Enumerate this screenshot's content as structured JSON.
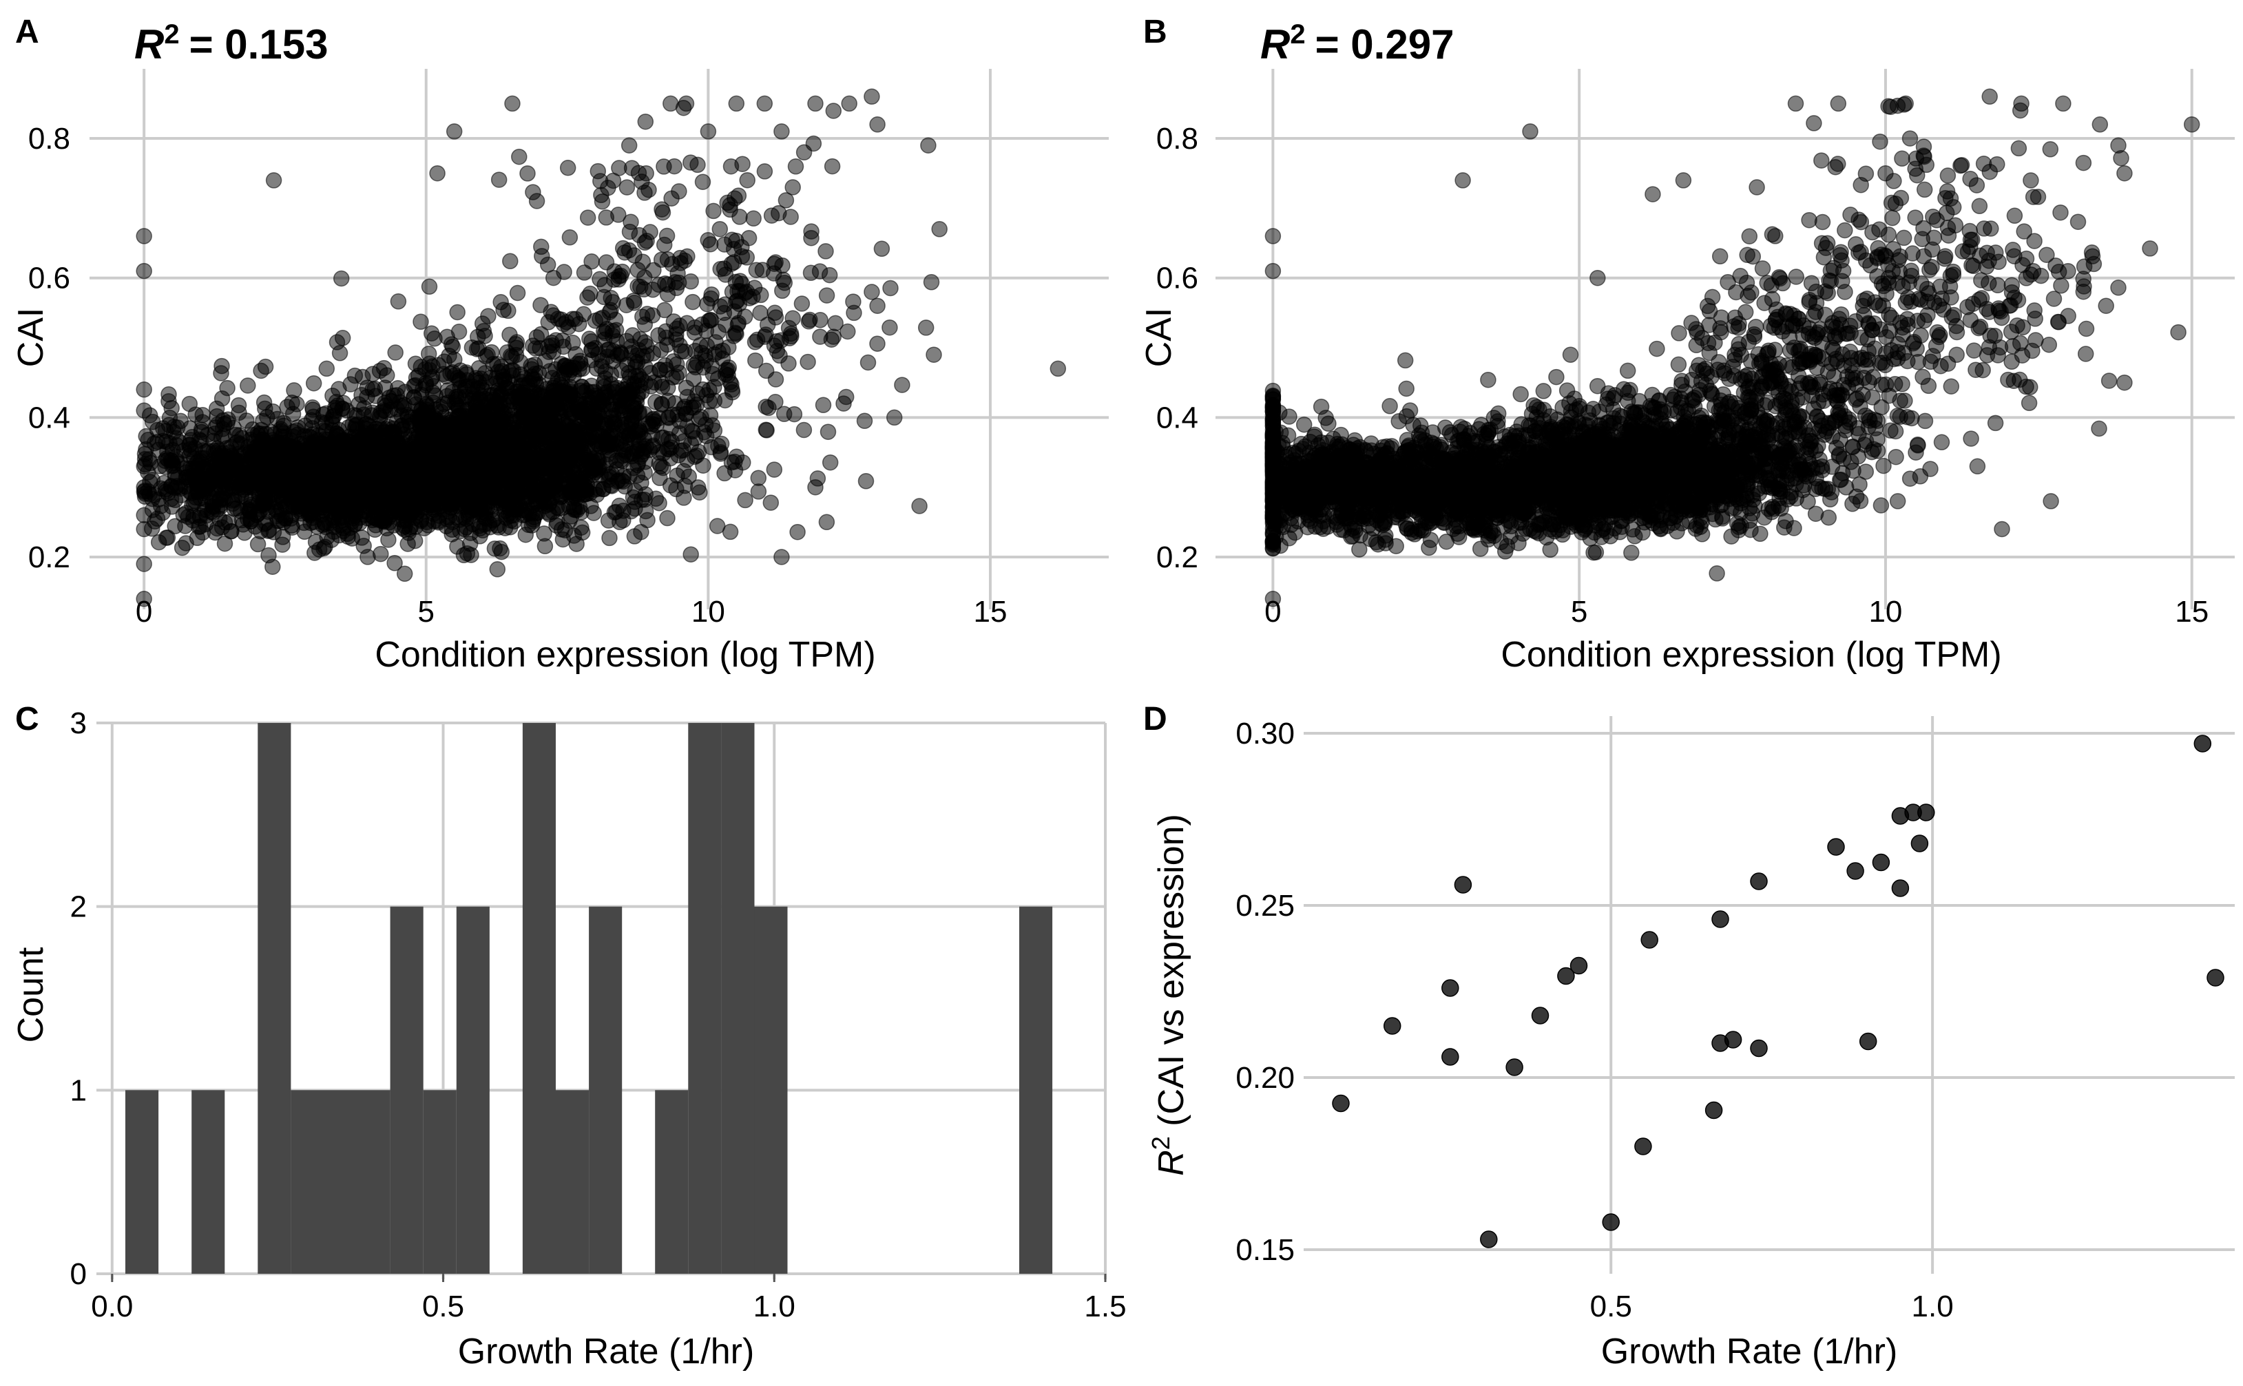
{
  "panels": {
    "A": {
      "letter": "A",
      "annotation": {
        "prefix": "R",
        "sup": "2",
        "value": "= 0.153"
      },
      "chart_data": {
        "type": "scatter",
        "xlabel": "Condition expression (log TPM)",
        "ylabel": "CAI",
        "xlim": [
          -0.6,
          17.1
        ],
        "ylim": [
          0.125,
          0.88
        ],
        "xticks": [
          0,
          5,
          10,
          15
        ],
        "yticks": [
          0.2,
          0.4,
          0.6,
          0.8
        ],
        "xtick_labels": [
          "0",
          "5",
          "10",
          "15"
        ],
        "ytick_labels": [
          "0.2",
          "0.4",
          "0.6",
          "0.8"
        ],
        "grid": true,
        "point_color": "#000000",
        "point_opacity": 0.5,
        "n_points_approx": 4000,
        "cloud": [
          {
            "x_mean": 4.0,
            "x_sd": 1.7,
            "y_mean": 0.305,
            "y_sd": 0.048,
            "n": 2200
          },
          {
            "x_mean": 6.8,
            "x_sd": 1.4,
            "y_mean": 0.36,
            "y_sd": 0.075,
            "n": 1300
          },
          {
            "x_mean": 9.5,
            "x_sd": 1.5,
            "y_mean": 0.5,
            "y_sd": 0.14,
            "n": 420
          },
          {
            "x_mean": 1.3,
            "x_sd": 0.7,
            "y_mean": 0.31,
            "y_sd": 0.05,
            "n": 150
          }
        ],
        "outliers": [
          [
            0,
            0.66
          ],
          [
            0,
            0.61
          ],
          [
            0,
            0.44
          ],
          [
            0,
            0.41
          ],
          [
            0,
            0.33
          ],
          [
            0,
            0.3
          ],
          [
            0,
            0.26
          ],
          [
            0,
            0.24
          ],
          [
            0,
            0.19
          ],
          [
            0,
            0.14
          ],
          [
            2.3,
            0.74
          ],
          [
            5.5,
            0.81
          ],
          [
            5.2,
            0.75
          ],
          [
            10.5,
            0.85
          ],
          [
            11.0,
            0.85
          ],
          [
            11.3,
            0.81
          ],
          [
            11.9,
            0.85
          ],
          [
            12.5,
            0.85
          ],
          [
            12.9,
            0.86
          ],
          [
            13.0,
            0.82
          ],
          [
            13.9,
            0.79
          ],
          [
            14.1,
            0.67
          ],
          [
            14.0,
            0.49
          ],
          [
            13.3,
            0.4
          ],
          [
            16.2,
            0.47
          ],
          [
            12.2,
            0.76
          ],
          [
            11.7,
            0.78
          ],
          [
            11.5,
            0.73
          ],
          [
            12.9,
            0.58
          ],
          [
            13.0,
            0.56
          ],
          [
            12.4,
            0.42
          ],
          [
            11.9,
            0.3
          ],
          [
            11.3,
            0.2
          ],
          [
            12.1,
            0.25
          ],
          [
            8.9,
            0.75
          ],
          [
            8.6,
            0.79
          ],
          [
            10.0,
            0.81
          ],
          [
            9.4,
            0.76
          ]
        ]
      }
    },
    "B": {
      "letter": "B",
      "annotation": {
        "prefix": "R",
        "sup": "2",
        "value": "= 0.297"
      },
      "chart_data": {
        "type": "scatter",
        "xlabel": "Condition expression (log TPM)",
        "ylabel": "CAI",
        "xlim": [
          -0.6,
          15.7
        ],
        "ylim": [
          0.125,
          0.88
        ],
        "xticks": [
          0,
          5,
          10,
          15
        ],
        "yticks": [
          0.2,
          0.4,
          0.6,
          0.8
        ],
        "xtick_labels": [
          "0",
          "5",
          "10",
          "15"
        ],
        "ytick_labels": [
          "0.2",
          "0.4",
          "0.6",
          "0.8"
        ],
        "grid": true,
        "point_color": "#000000",
        "point_opacity": 0.5,
        "n_points_approx": 4000,
        "cloud": [
          {
            "x_mean": 3.2,
            "x_sd": 1.8,
            "y_mean": 0.29,
            "y_sd": 0.04,
            "n": 1700
          },
          {
            "x_mean": 6.2,
            "x_sd": 1.2,
            "y_mean": 0.32,
            "y_sd": 0.05,
            "n": 1300
          },
          {
            "x_mean": 8.5,
            "x_sd": 0.9,
            "y_mean": 0.42,
            "y_sd": 0.09,
            "n": 450
          },
          {
            "x_mean": 10.8,
            "x_sd": 1.4,
            "y_mean": 0.56,
            "y_sd": 0.12,
            "n": 300
          },
          {
            "x_mean": 0.9,
            "x_sd": 0.5,
            "y_mean": 0.3,
            "y_sd": 0.04,
            "n": 150
          },
          {
            "x_mean": 0.0,
            "x_sd": 0.0,
            "y_mean": 0.31,
            "y_sd": 0.06,
            "n": 160
          }
        ],
        "outliers": [
          [
            0,
            0.66
          ],
          [
            0,
            0.61
          ],
          [
            0,
            0.14
          ],
          [
            4.2,
            0.81
          ],
          [
            3.1,
            0.74
          ],
          [
            6.7,
            0.74
          ],
          [
            7.9,
            0.73
          ],
          [
            6.2,
            0.72
          ],
          [
            11.7,
            0.86
          ],
          [
            12.2,
            0.84
          ],
          [
            12.9,
            0.85
          ],
          [
            13.5,
            0.82
          ],
          [
            13.8,
            0.79
          ],
          [
            13.9,
            0.75
          ],
          [
            15.0,
            0.82
          ],
          [
            13.4,
            0.62
          ],
          [
            13.6,
            0.56
          ],
          [
            13.9,
            0.45
          ],
          [
            12.7,
            0.28
          ],
          [
            11.9,
            0.24
          ],
          [
            10.2,
            0.28
          ],
          [
            11.5,
            0.33
          ],
          [
            10.4,
            0.8
          ],
          [
            10.0,
            0.75
          ],
          [
            9.6,
            0.68
          ],
          [
            8.2,
            0.66
          ],
          [
            5.3,
            0.6
          ]
        ]
      }
    },
    "C": {
      "letter": "C",
      "chart_data": {
        "type": "bar",
        "xlabel": "Growth Rate (1/hr)",
        "ylabel": "Count",
        "xlim": [
          -0.005,
          1.5
        ],
        "ylim": [
          0,
          3
        ],
        "xticks": [
          0.0,
          0.5,
          1.0,
          1.5
        ],
        "yticks": [
          0,
          1,
          2,
          3
        ],
        "xtick_labels": [
          "0.0",
          "0.5",
          "1.0",
          "1.5"
        ],
        "ytick_labels": [
          "0",
          "1",
          "2",
          "3"
        ],
        "grid": true,
        "bar_color": "#474747",
        "bin_width": 0.05,
        "bins": [
          {
            "x0": 0.02,
            "count": 1
          },
          {
            "x0": 0.07,
            "count": 0
          },
          {
            "x0": 0.12,
            "count": 1
          },
          {
            "x0": 0.17,
            "count": 0
          },
          {
            "x0": 0.22,
            "count": 3
          },
          {
            "x0": 0.27,
            "count": 1
          },
          {
            "x0": 0.32,
            "count": 1
          },
          {
            "x0": 0.37,
            "count": 1
          },
          {
            "x0": 0.42,
            "count": 2
          },
          {
            "x0": 0.47,
            "count": 1
          },
          {
            "x0": 0.52,
            "count": 2
          },
          {
            "x0": 0.57,
            "count": 0
          },
          {
            "x0": 0.62,
            "count": 3
          },
          {
            "x0": 0.67,
            "count": 1
          },
          {
            "x0": 0.72,
            "count": 2
          },
          {
            "x0": 0.77,
            "count": 0
          },
          {
            "x0": 0.82,
            "count": 1
          },
          {
            "x0": 0.87,
            "count": 3
          },
          {
            "x0": 0.92,
            "count": 3
          },
          {
            "x0": 0.97,
            "count": 2
          },
          {
            "x0": 1.37,
            "count": 2
          }
        ]
      }
    },
    "D": {
      "letter": "D",
      "chart_data": {
        "type": "scatter",
        "xlabel": "Growth Rate (1/hr)",
        "ylabel": {
          "prefix": "R",
          "sup": "2",
          "rest": " (CAI vs expression)"
        },
        "xlim": [
          0.035,
          1.47
        ],
        "ylim": [
          0.143,
          0.303
        ],
        "xticks": [
          0.5,
          1.0
        ],
        "yticks": [
          0.15,
          0.2,
          0.25,
          0.3
        ],
        "xtick_labels": [
          "0.5",
          "1.0"
        ],
        "ytick_labels": [
          "0.15",
          "0.20",
          "0.25",
          "0.30"
        ],
        "grid": true,
        "point_color": "#000000",
        "point_opacity": 0.78,
        "points": [
          [
            0.08,
            0.1925
          ],
          [
            0.16,
            0.215
          ],
          [
            0.25,
            0.226
          ],
          [
            0.25,
            0.206
          ],
          [
            0.27,
            0.256
          ],
          [
            0.31,
            0.153
          ],
          [
            0.35,
            0.203
          ],
          [
            0.39,
            0.218
          ],
          [
            0.43,
            0.2295
          ],
          [
            0.45,
            0.2325
          ],
          [
            0.5,
            0.158
          ],
          [
            0.55,
            0.18
          ],
          [
            0.56,
            0.24
          ],
          [
            0.66,
            0.1905
          ],
          [
            0.67,
            0.246
          ],
          [
            0.67,
            0.21
          ],
          [
            0.69,
            0.211
          ],
          [
            0.73,
            0.2085
          ],
          [
            0.73,
            0.257
          ],
          [
            0.85,
            0.267
          ],
          [
            0.88,
            0.26
          ],
          [
            0.9,
            0.2105
          ],
          [
            0.92,
            0.2625
          ],
          [
            0.95,
            0.255
          ],
          [
            0.95,
            0.276
          ],
          [
            0.97,
            0.277
          ],
          [
            0.98,
            0.268
          ],
          [
            0.99,
            0.277
          ],
          [
            1.42,
            0.297
          ],
          [
            1.44,
            0.229
          ]
        ]
      }
    }
  }
}
